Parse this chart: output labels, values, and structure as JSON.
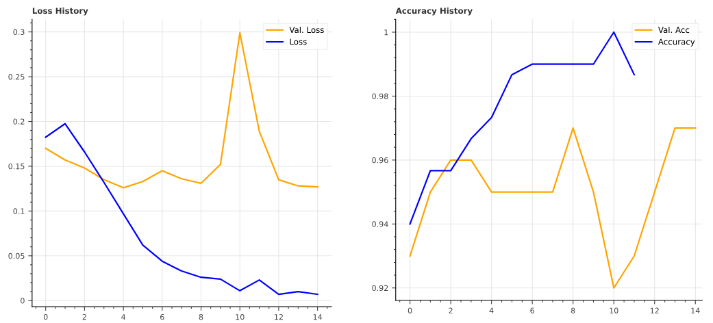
{
  "chart_data": [
    {
      "type": "line",
      "title": "Loss History",
      "x": [
        0,
        1,
        2,
        3,
        4,
        5,
        6,
        7,
        8,
        9,
        10,
        11,
        12,
        13,
        14
      ],
      "xlim": [
        -0.7,
        14.72
      ],
      "xticks": [
        0,
        2,
        4,
        6,
        8,
        10,
        12,
        14
      ],
      "ylim": [
        -0.007,
        0.314
      ],
      "yticks": [
        0,
        0.05,
        0.1,
        0.15,
        0.2,
        0.25,
        0.3
      ],
      "grid": true,
      "legend": "top right",
      "series": [
        {
          "name": "Val. Loss",
          "color": "#ffa500",
          "values": [
            0.17,
            0.157,
            0.148,
            0.135,
            0.126,
            0.133,
            0.145,
            0.136,
            0.131,
            0.152,
            0.299,
            0.189,
            0.135,
            0.128,
            0.127
          ]
        },
        {
          "name": "Loss",
          "color": "#0000ff",
          "values": [
            0.1825,
            0.1975,
            0.166,
            0.132,
            0.097,
            0.062,
            0.044,
            0.033,
            0.026,
            0.024,
            0.011,
            0.023,
            0.007,
            0.01,
            0.007
          ]
        }
      ]
    },
    {
      "type": "line",
      "title": "Accuracy History",
      "x": [
        0,
        1,
        2,
        3,
        4,
        5,
        6,
        7,
        8,
        9,
        10,
        11,
        12,
        13,
        14
      ],
      "xlim": [
        -0.7,
        14.34
      ],
      "xticks": [
        0,
        2,
        4,
        6,
        8,
        10,
        12,
        14
      ],
      "ylim": [
        0.9161,
        1.004
      ],
      "yticks": [
        0.92,
        0.94,
        0.96,
        0.98,
        1
      ],
      "grid": true,
      "legend": "top right",
      "series": [
        {
          "name": "Val. Acc",
          "color": "#ffa500",
          "values": [
            0.93,
            0.95,
            0.96,
            0.96,
            0.95,
            0.95,
            0.95,
            0.95,
            0.97,
            0.95,
            0.92,
            0.93,
            0.95,
            0.97,
            0.97
          ]
        },
        {
          "name": "Accuracy",
          "color": "#0000ff",
          "values": [
            0.94,
            0.9567,
            0.9567,
            0.9667,
            0.9733,
            0.9867,
            0.99,
            0.99,
            0.99,
            0.99,
            1.0,
            0.9867,
            null,
            null,
            null
          ]
        }
      ]
    }
  ]
}
